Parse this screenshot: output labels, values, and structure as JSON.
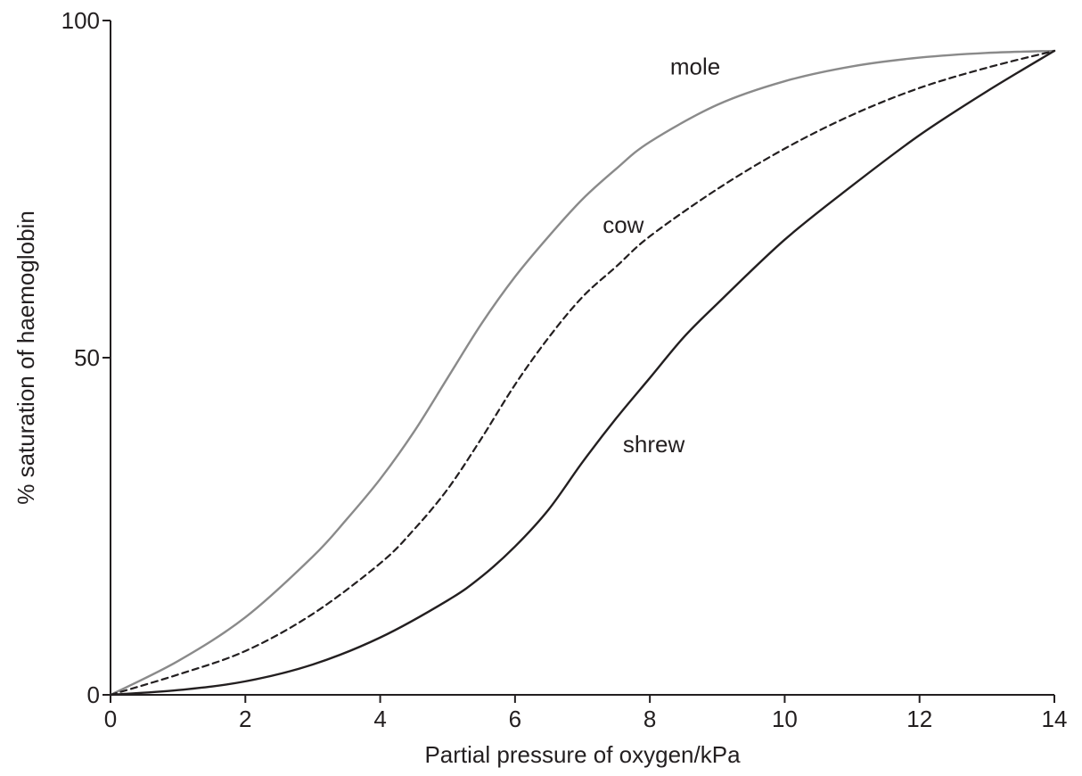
{
  "chart_data": {
    "type": "line",
    "title": "",
    "xlabel": "Partial pressure of oxygen/kPa",
    "ylabel": "% saturation of haemoglobin",
    "xlim": [
      0,
      14
    ],
    "ylim": [
      0,
      100
    ],
    "xticks": [
      "0",
      "2",
      "4",
      "6",
      "8",
      "10",
      "12",
      "14"
    ],
    "yticks": [
      "0",
      "50",
      "100"
    ],
    "grid": false,
    "legend": "none",
    "series": [
      {
        "name": "mole",
        "color": "#8a8a8a",
        "dash": "solid",
        "label_at": {
          "x": 8.3,
          "y": 92
        },
        "points": [
          [
            0,
            0
          ],
          [
            1,
            5
          ],
          [
            2,
            11.5
          ],
          [
            3,
            20.5
          ],
          [
            3.5,
            26
          ],
          [
            4,
            32
          ],
          [
            4.5,
            39
          ],
          [
            5,
            47
          ],
          [
            5.5,
            55
          ],
          [
            6,
            62
          ],
          [
            6.5,
            68
          ],
          [
            7,
            73.5
          ],
          [
            7.5,
            78
          ],
          [
            8,
            82
          ],
          [
            9,
            87.5
          ],
          [
            10,
            91
          ],
          [
            11,
            93.2
          ],
          [
            12,
            94.5
          ],
          [
            13,
            95.2
          ],
          [
            14,
            95.5
          ]
        ]
      },
      {
        "name": "cow",
        "color": "#231f20",
        "dash": "dashed",
        "label_at": {
          "x": 7.3,
          "y": 68.5
        },
        "points": [
          [
            0,
            0
          ],
          [
            1,
            3
          ],
          [
            2,
            6.5
          ],
          [
            3,
            12
          ],
          [
            4,
            19.5
          ],
          [
            4.5,
            24.5
          ],
          [
            5,
            30.5
          ],
          [
            5.5,
            38
          ],
          [
            6,
            46
          ],
          [
            6.5,
            53
          ],
          [
            7,
            59
          ],
          [
            7.5,
            63.5
          ],
          [
            8,
            68
          ],
          [
            9,
            75
          ],
          [
            10,
            81
          ],
          [
            11,
            86
          ],
          [
            12,
            90
          ],
          [
            13,
            93
          ],
          [
            14,
            95.5
          ]
        ]
      },
      {
        "name": "shrew",
        "color": "#231f20",
        "dash": "solid",
        "label_at": {
          "x": 7.6,
          "y": 36
        },
        "points": [
          [
            0,
            0
          ],
          [
            1,
            0.7
          ],
          [
            2,
            2
          ],
          [
            3,
            4.5
          ],
          [
            4,
            8.5
          ],
          [
            5,
            14
          ],
          [
            5.5,
            17.5
          ],
          [
            6,
            22
          ],
          [
            6.5,
            27.5
          ],
          [
            7,
            34.5
          ],
          [
            7.5,
            41
          ],
          [
            8,
            47
          ],
          [
            8.5,
            53
          ],
          [
            9,
            58
          ],
          [
            10,
            67.5
          ],
          [
            11,
            75.5
          ],
          [
            12,
            83
          ],
          [
            13,
            89.5
          ],
          [
            14,
            95.5
          ]
        ]
      }
    ]
  }
}
